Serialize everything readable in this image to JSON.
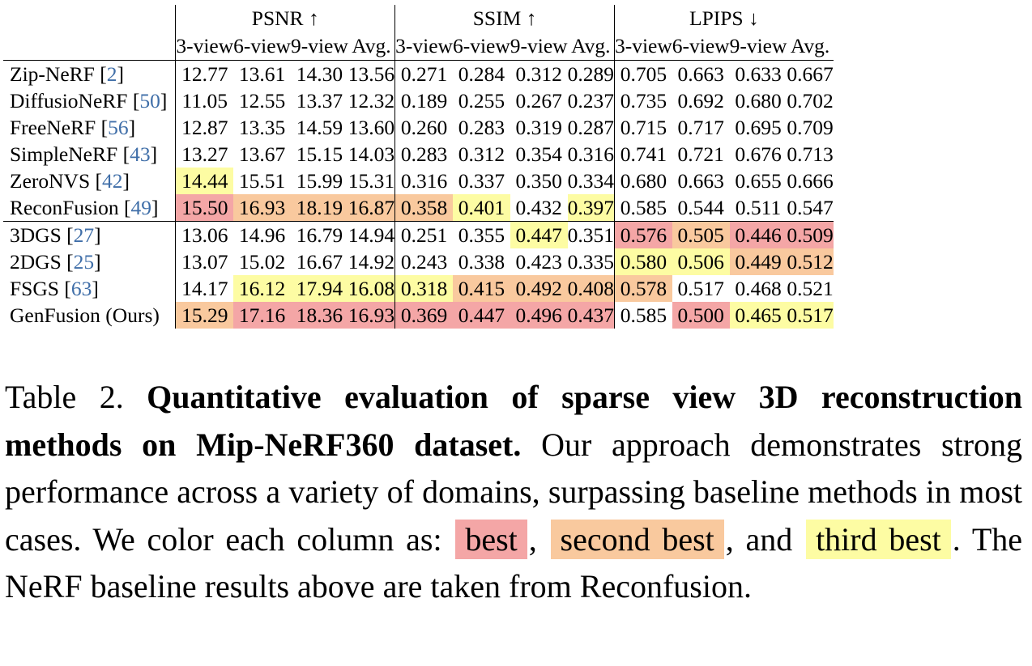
{
  "table": {
    "groups": [
      {
        "name": "PSNR ↑"
      },
      {
        "name": "SSIM ↑"
      },
      {
        "name": "LPIPS ↓"
      }
    ],
    "columns": [
      "3-view",
      "6-view",
      "9-view",
      "Avg."
    ],
    "rows": [
      {
        "method": "Zip-NeRF",
        "ref": "2",
        "values": [
          "12.77",
          "13.61",
          "14.30",
          "13.56",
          "0.271",
          "0.284",
          "0.312",
          "0.289",
          "0.705",
          "0.663",
          "0.633",
          "0.667"
        ],
        "ranks": [
          0,
          0,
          0,
          0,
          0,
          0,
          0,
          0,
          0,
          0,
          0,
          0
        ]
      },
      {
        "method": "DiffusioNeRF",
        "ref": "50",
        "values": [
          "11.05",
          "12.55",
          "13.37",
          "12.32",
          "0.189",
          "0.255",
          "0.267",
          "0.237",
          "0.735",
          "0.692",
          "0.680",
          "0.702"
        ],
        "ranks": [
          0,
          0,
          0,
          0,
          0,
          0,
          0,
          0,
          0,
          0,
          0,
          0
        ]
      },
      {
        "method": "FreeNeRF",
        "ref": "56",
        "values": [
          "12.87",
          "13.35",
          "14.59",
          "13.60",
          "0.260",
          "0.283",
          "0.319",
          "0.287",
          "0.715",
          "0.717",
          "0.695",
          "0.709"
        ],
        "ranks": [
          0,
          0,
          0,
          0,
          0,
          0,
          0,
          0,
          0,
          0,
          0,
          0
        ]
      },
      {
        "method": "SimpleNeRF",
        "ref": "43",
        "values": [
          "13.27",
          "13.67",
          "15.15",
          "14.03",
          "0.283",
          "0.312",
          "0.354",
          "0.316",
          "0.741",
          "0.721",
          "0.676",
          "0.713"
        ],
        "ranks": [
          0,
          0,
          0,
          0,
          0,
          0,
          0,
          0,
          0,
          0,
          0,
          0
        ]
      },
      {
        "method": "ZeroNVS",
        "ref": "42",
        "values": [
          "14.44",
          "15.51",
          "15.99",
          "15.31",
          "0.316",
          "0.337",
          "0.350",
          "0.334",
          "0.680",
          "0.663",
          "0.655",
          "0.666"
        ],
        "ranks": [
          3,
          0,
          0,
          0,
          0,
          0,
          0,
          0,
          0,
          0,
          0,
          0
        ]
      },
      {
        "method": "ReconFusion",
        "ref": "49",
        "values": [
          "15.50",
          "16.93",
          "18.19",
          "16.87",
          "0.358",
          "0.401",
          "0.432",
          "0.397",
          "0.585",
          "0.544",
          "0.511",
          "0.547"
        ],
        "ranks": [
          1,
          2,
          2,
          2,
          2,
          3,
          0,
          3,
          0,
          0,
          0,
          0
        ]
      },
      {
        "method": "3DGS",
        "ref": "27",
        "values": [
          "13.06",
          "14.96",
          "16.79",
          "14.94",
          "0.251",
          "0.355",
          "0.447",
          "0.351",
          "0.576",
          "0.505",
          "0.446",
          "0.509"
        ],
        "ranks": [
          0,
          0,
          0,
          0,
          0,
          0,
          3,
          0,
          1,
          2,
          1,
          1
        ]
      },
      {
        "method": "2DGS",
        "ref": "25",
        "values": [
          "13.07",
          "15.02",
          "16.67",
          "14.92",
          "0.243",
          "0.338",
          "0.423",
          "0.335",
          "0.580",
          "0.506",
          "0.449",
          "0.512"
        ],
        "ranks": [
          0,
          0,
          0,
          0,
          0,
          0,
          0,
          0,
          3,
          3,
          2,
          2
        ]
      },
      {
        "method": "FSGS",
        "ref": "63",
        "values": [
          "14.17",
          "16.12",
          "17.94",
          "16.08",
          "0.318",
          "0.415",
          "0.492",
          "0.408",
          "0.578",
          "0.517",
          "0.468",
          "0.521"
        ],
        "ranks": [
          0,
          3,
          3,
          3,
          3,
          2,
          2,
          2,
          2,
          0,
          0,
          0
        ]
      },
      {
        "method": "GenFusion (Ours)",
        "ref": "",
        "values": [
          "15.29",
          "17.16",
          "18.36",
          "16.93",
          "0.369",
          "0.447",
          "0.496",
          "0.437",
          "0.585",
          "0.500",
          "0.465",
          "0.517"
        ],
        "ranks": [
          2,
          1,
          1,
          1,
          1,
          1,
          1,
          1,
          0,
          1,
          3,
          3
        ]
      }
    ]
  },
  "rank_colors": {
    "1": "#f4a6a6",
    "2": "#f9c99e",
    "3": "#fdfca3"
  },
  "caption": {
    "label": "Table 2.",
    "title": "Quantitative evaluation of sparse view 3D reconstruction methods on Mip-NeRF360 dataset.",
    "text1": "Our approach demonstrates strong performance across a variety of domains, surpassing baseline methods in most cases. We color each column as:",
    "best": "best",
    "text2": ",",
    "second_best": "second best",
    "text3": ", and",
    "third_best": "third best",
    "text4": ". The NeRF baseline results above are taken from Reconfusion."
  }
}
